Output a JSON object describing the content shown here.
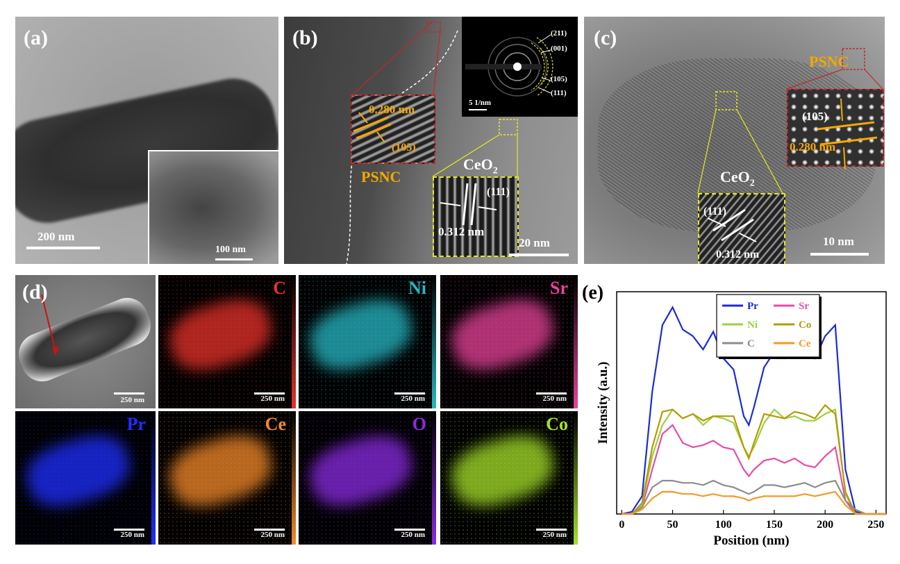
{
  "panels": {
    "a": {
      "label": "(a)",
      "scale_main": "200 nm",
      "scale_inset": "100 nm"
    },
    "b": {
      "label": "(b)",
      "psnc": "PSNC",
      "ceo2": "CeO",
      "ceo2_sub": "2",
      "d_psnc": "0.280 nm",
      "hkl_psnc": "(105)",
      "d_ceo2": "0.312 nm",
      "hkl_ceo2": "(111)",
      "saed_rings": [
        "(211)",
        "(001)",
        "(105)",
        "(111)"
      ],
      "saed_scale": "5 1/nm",
      "scale": "20 nm"
    },
    "c": {
      "label": "(c)",
      "psnc": "PSNC",
      "ceo2": "CeO",
      "ceo2_sub": "2",
      "hkl_psnc": "(105)",
      "d_psnc": "0.280 nm",
      "hkl_ceo2": "(111)",
      "d_ceo2": "0.312 nm",
      "scale": "10 nm"
    },
    "d": {
      "label": "(d)",
      "scale": "250 nm",
      "maps": [
        {
          "element": "C",
          "color": "#e8322a"
        },
        {
          "element": "Ni",
          "color": "#27b8c4"
        },
        {
          "element": "Sr",
          "color": "#e8439a"
        },
        {
          "element": "Pr",
          "color": "#1f2fff"
        },
        {
          "element": "Ce",
          "color": "#f58a2a"
        },
        {
          "element": "O",
          "color": "#8a2be2"
        },
        {
          "element": "Co",
          "color": "#a6e22a"
        }
      ]
    },
    "e": {
      "label": "(e)"
    }
  },
  "chart_data": {
    "type": "line",
    "xlabel": "Position (nm)",
    "ylabel": "Intensity (a.u.)",
    "xlim": [
      -5,
      260
    ],
    "ylim": [
      0,
      100
    ],
    "xticks": [
      "0",
      "50",
      "100",
      "150",
      "200",
      "250"
    ],
    "legend_position": "top-center",
    "x": [
      0,
      10,
      20,
      30,
      40,
      50,
      60,
      70,
      80,
      90,
      100,
      110,
      120,
      125,
      130,
      140,
      150,
      160,
      170,
      180,
      190,
      200,
      210,
      220,
      230,
      240,
      250,
      260
    ],
    "series": [
      {
        "name": "Pr",
        "color": "#1a2bd6",
        "values": [
          0,
          1,
          8,
          55,
          85,
          93,
          83,
          80,
          74,
          82,
          70,
          65,
          44,
          40,
          48,
          66,
          73,
          70,
          74,
          73,
          70,
          80,
          85,
          20,
          1,
          0,
          0,
          0
        ]
      },
      {
        "name": "Sr",
        "color": "#e64ca8",
        "values": [
          0,
          0,
          3,
          20,
          36,
          40,
          32,
          30,
          31,
          33,
          30,
          29,
          20,
          17,
          20,
          24,
          25,
          23,
          25,
          22,
          21,
          26,
          30,
          6,
          0,
          0,
          0,
          0
        ]
      },
      {
        "name": "Ni",
        "color": "#9bd13f",
        "values": [
          0,
          0,
          4,
          26,
          40,
          47,
          43,
          45,
          40,
          44,
          43,
          41,
          30,
          26,
          30,
          41,
          47,
          43,
          44,
          42,
          42,
          45,
          47,
          9,
          0,
          0,
          0,
          0
        ]
      },
      {
        "name": "Co",
        "color": "#b59a00",
        "values": [
          0,
          0,
          5,
          30,
          46,
          47,
          43,
          45,
          42,
          44,
          44,
          44,
          30,
          25,
          32,
          45,
          44,
          43,
          46,
          45,
          43,
          49,
          45,
          10,
          0,
          0,
          0,
          0
        ]
      },
      {
        "name": "C",
        "color": "#8c8c8c",
        "values": [
          0,
          0,
          3,
          12,
          15,
          15,
          14,
          14,
          13,
          15,
          13,
          12,
          10,
          9,
          10,
          13,
          13,
          12,
          13,
          14,
          12,
          14,
          15,
          6,
          2,
          0,
          0,
          0
        ]
      },
      {
        "name": "Ce",
        "color": "#f39a22",
        "values": [
          0,
          0,
          2,
          7,
          10,
          10,
          9,
          9,
          8,
          9,
          8,
          8,
          7,
          6,
          7,
          8,
          8,
          8,
          8,
          9,
          8,
          9,
          10,
          4,
          0,
          0,
          0,
          0
        ]
      }
    ]
  }
}
